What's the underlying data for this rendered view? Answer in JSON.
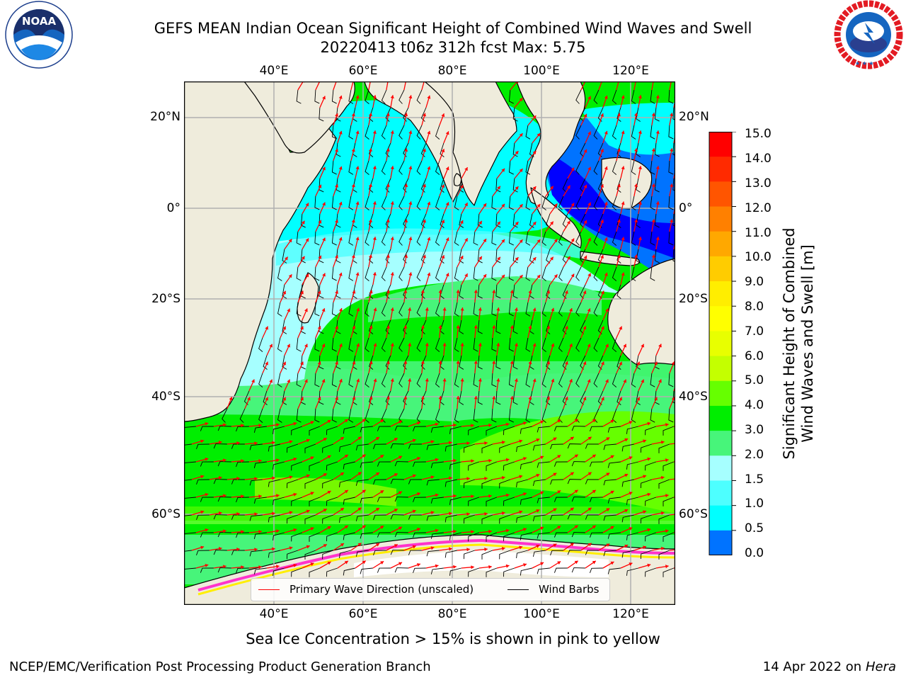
{
  "header": {
    "title_line1": "GEFS MEAN Indian Ocean Significant Height of Combined Wind Waves and Swell",
    "title_line2": "20220413 t06z 312h fcst   Max: 5.75"
  },
  "logos": {
    "noaa": {
      "text": "NOAA",
      "ring_text": "NATIONAL OCEANIC AND ATMOSPHERIC ADMINISTRATION · U.S. DEPARTMENT OF COMMERCE"
    },
    "nws": {
      "ring_text": "NATIONAL WEATHER SERVICE"
    }
  },
  "map": {
    "lon_labels_top": [
      "40°E",
      "60°E",
      "80°E",
      "100°E",
      "120°E"
    ],
    "lon_labels_bottom": [
      "40°E",
      "60°E",
      "80°E",
      "100°E",
      "120°E"
    ],
    "lat_labels_left": [
      "20°N",
      "0°",
      "20°S",
      "40°S",
      "60°S"
    ],
    "lat_labels_right": [
      "20°N",
      "0°",
      "20°S",
      "40°S",
      "60°S"
    ],
    "colors": {
      "land": "#efecdc",
      "coast": "#000000",
      "grid": "#b0b0b0",
      "wave_arrow": "#ff0000",
      "barb": "#000000",
      "ice_pink": "#ff33cc",
      "ice_yellow": "#ffee00"
    }
  },
  "legend": {
    "primary_wave": "Primary Wave Direction (unscaled)",
    "wind_barbs": "Wind Barbs"
  },
  "colorbar": {
    "title_line1": "Significant Height of Combined",
    "title_line2": "Wind Waves and Swell [m]",
    "labels": [
      "15.0",
      "14.0",
      "13.0",
      "12.0",
      "11.0",
      "10.0",
      "9.0",
      "8.0",
      "7.0",
      "6.0",
      "5.0",
      "4.0",
      "3.0",
      "2.0",
      "1.5",
      "1.0",
      "0.5",
      "0.0"
    ],
    "colors": [
      "#ff0000",
      "#ff2a00",
      "#ff5500",
      "#ff8000",
      "#ffa800",
      "#ffcc00",
      "#ffee00",
      "#ffff00",
      "#e8ff00",
      "#c4ff00",
      "#66ff00",
      "#00ee00",
      "#47f57a",
      "#a6ffff",
      "#4dffff",
      "#00ffff",
      "#0073ff",
      "#0000ff"
    ]
  },
  "footer": {
    "sea_ice_note": "Sea Ice Concentration > 15% is shown in pink to yellow",
    "left": "NCEP/EMC/Verification Post Processing Product Generation Branch",
    "right_prefix": "14 Apr 2022 on ",
    "right_host": "Hera"
  }
}
